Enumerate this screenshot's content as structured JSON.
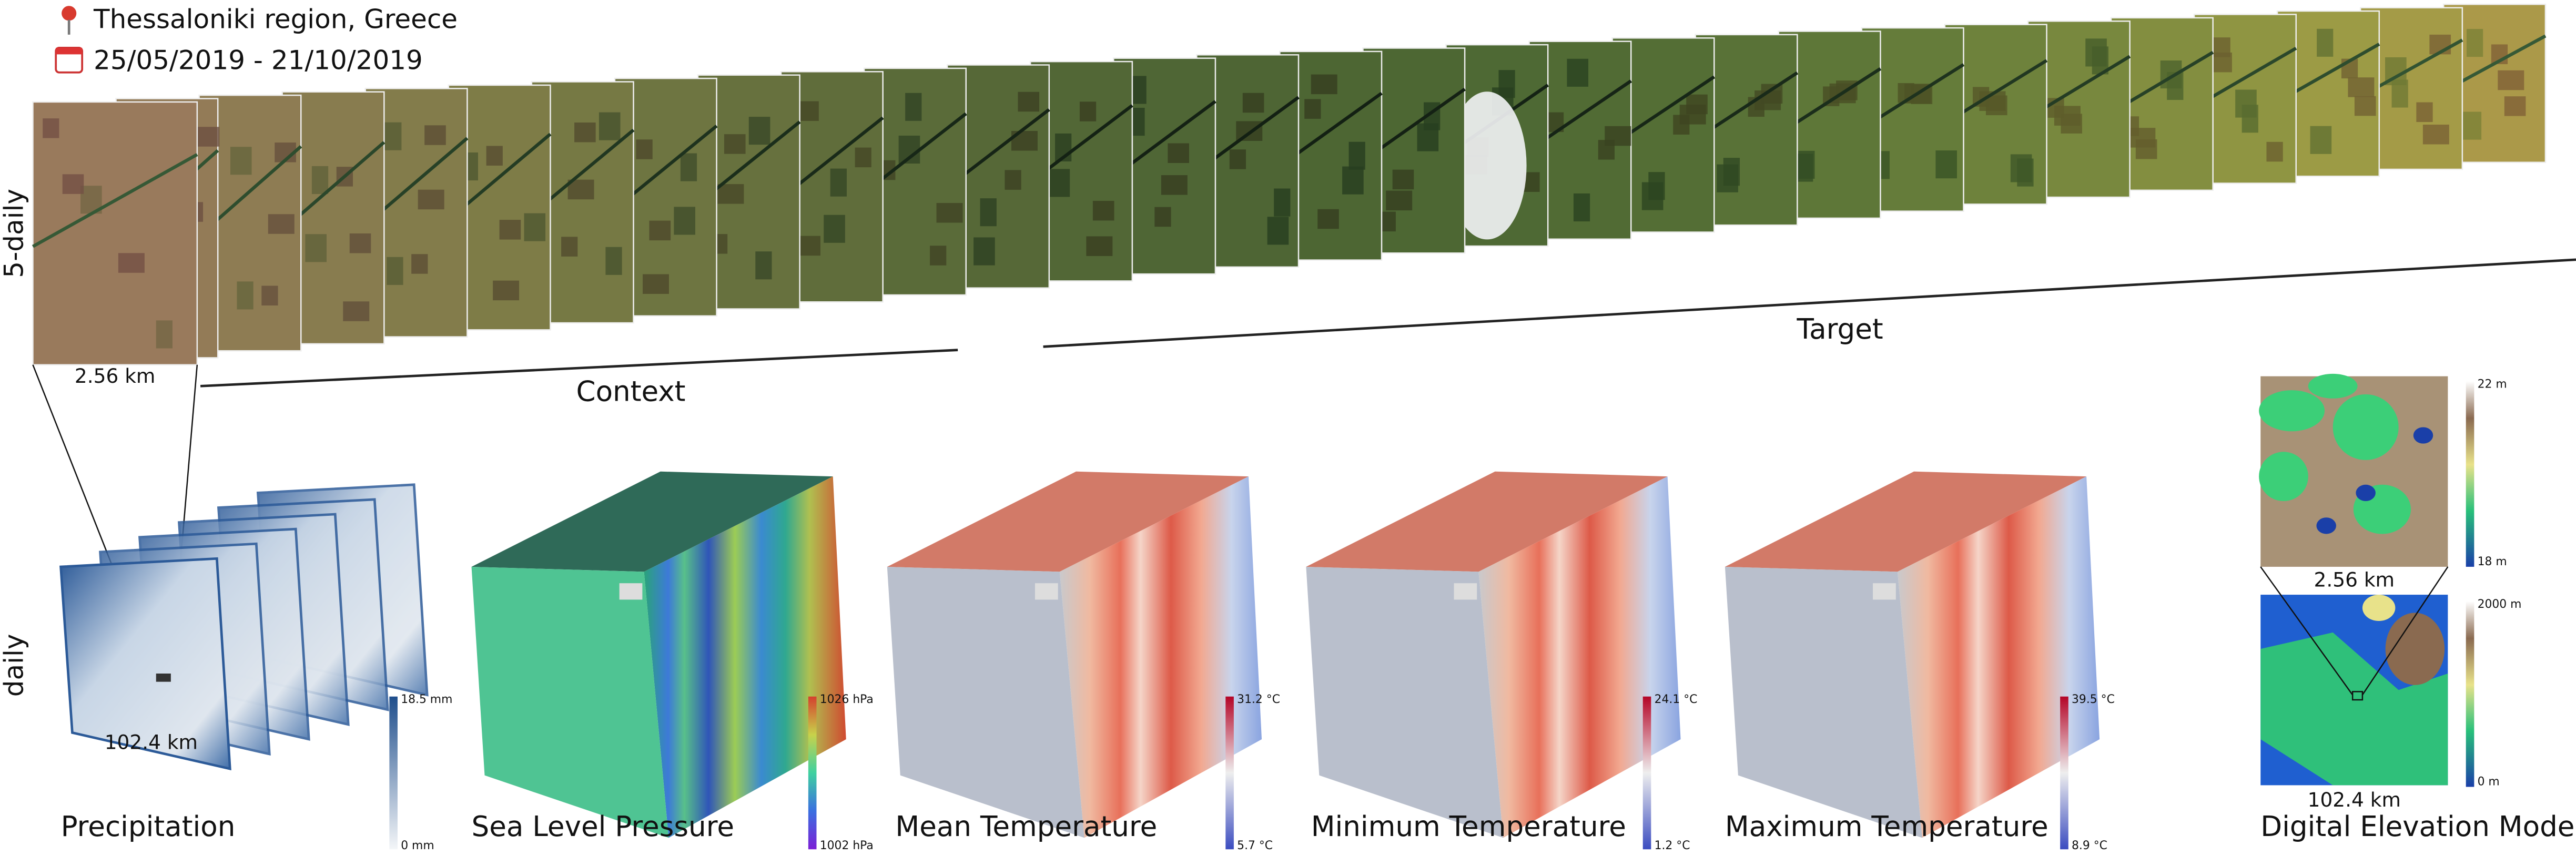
{
  "header": {
    "location": "Thessaloniki region, Greece",
    "dates": "25/05/2019 - 21/10/2019"
  },
  "rows": {
    "five_daily": "5-daily",
    "daily": "daily"
  },
  "timeline": {
    "scale": "2.56 km",
    "context": "Context",
    "target": "Target"
  },
  "panels": [
    {
      "title": "Precipitation",
      "scale": "102.4 km",
      "max": "18.5 mm",
      "min": "0 mm"
    },
    {
      "title": "Sea Level Pressure",
      "max": "1026 hPa",
      "min": "1002 hPa"
    },
    {
      "title": "Mean Temperature",
      "max": "31.2 °C",
      "min": "5.7 °C"
    },
    {
      "title": "Minimum Temperature",
      "max": "24.1 °C",
      "min": "1.2 °C"
    },
    {
      "title": "Maximum Temperature",
      "max": "39.5 °C",
      "min": "8.9 °C"
    }
  ],
  "dem": {
    "title": "Digital Elevation Model",
    "local": {
      "max": "22 m",
      "min": "18 m",
      "scale": "2.56 km"
    },
    "regional": {
      "max": "2000 m",
      "min": "0 m",
      "scale": "102.4 km"
    }
  }
}
